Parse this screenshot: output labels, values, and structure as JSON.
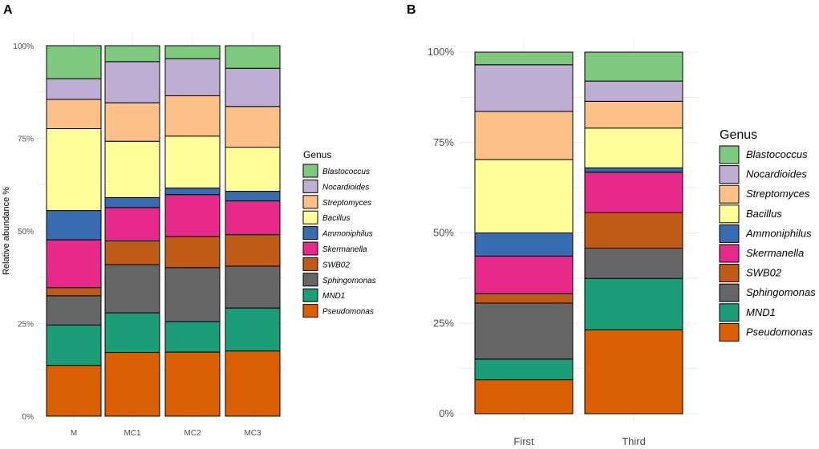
{
  "genera": [
    "Pseudomonas",
    "MND1",
    "Sphingomonas",
    "SWB02",
    "Skermanella",
    "Ammoniphilus",
    "Bacillus",
    "Streptomyces",
    "Nocardioides",
    "Blastococcus"
  ],
  "colors": {
    "Pseudomonas": "#d95f02",
    "MND1": "#1b9e77",
    "Sphingomonas": "#666666",
    "SWB02": "#bf5b17",
    "Skermanella": "#e7298a",
    "Ammoniphilus": "#386cb0",
    "Bacillus": "#ffff99",
    "Streptomyces": "#fdc086",
    "Nocardioides": "#beaed4",
    "Blastococcus": "#7fc97f"
  },
  "legend_order": [
    "Blastococcus",
    "Nocardioides",
    "Streptomyces",
    "Bacillus",
    "Ammoniphilus",
    "Skermanella",
    "SWB02",
    "Sphingomonas",
    "MND1",
    "Pseudomonas"
  ],
  "chart_data": [
    {
      "panel": "A",
      "type": "bar",
      "stacked": true,
      "title": "",
      "xlabel": "",
      "ylabel": "Relative abundance %",
      "ylim": [
        0,
        100
      ],
      "yticks": [
        "0%",
        "25%",
        "50%",
        "75%",
        "100%"
      ],
      "legend_title": "Genus",
      "legend_position": "right",
      "categories": [
        "M",
        "MC1",
        "MC2",
        "MC3"
      ],
      "series": [
        {
          "name": "Pseudomonas",
          "values": [
            13.7,
            17.2,
            17.3,
            17.6
          ]
        },
        {
          "name": "MND1",
          "values": [
            10.9,
            10.7,
            8.2,
            11.6
          ]
        },
        {
          "name": "Sphingomonas",
          "values": [
            7.9,
            13.0,
            14.6,
            11.3
          ]
        },
        {
          "name": "SWB02",
          "values": [
            2.2,
            6.4,
            8.4,
            8.5
          ]
        },
        {
          "name": "Skermanella",
          "values": [
            12.9,
            9.0,
            11.3,
            9.1
          ]
        },
        {
          "name": "Ammoniphilus",
          "values": [
            7.9,
            2.7,
            1.8,
            2.6
          ]
        },
        {
          "name": "Bacillus",
          "values": [
            22.1,
            15.2,
            14.0,
            11.9
          ]
        },
        {
          "name": "Streptomyces",
          "values": [
            7.9,
            10.4,
            10.9,
            11.0
          ]
        },
        {
          "name": "Nocardioides",
          "values": [
            5.6,
            11.1,
            10.0,
            10.3
          ]
        },
        {
          "name": "Blastococcus",
          "values": [
            8.9,
            4.3,
            3.5,
            6.1
          ]
        }
      ]
    },
    {
      "panel": "B",
      "type": "bar",
      "stacked": true,
      "title": "",
      "xlabel": "",
      "ylabel": "",
      "ylim": [
        0,
        100
      ],
      "yticks": [
        "0%",
        "25%",
        "50%",
        "75%",
        "100%"
      ],
      "legend_title": "Genus",
      "legend_position": "right",
      "categories": [
        "First",
        "Third"
      ],
      "series": [
        {
          "name": "Pseudomonas",
          "values": [
            9.4,
            23.2
          ]
        },
        {
          "name": "MND1",
          "values": [
            5.7,
            14.2
          ]
        },
        {
          "name": "Sphingomonas",
          "values": [
            15.5,
            8.4
          ]
        },
        {
          "name": "SWB02",
          "values": [
            2.6,
            9.8
          ]
        },
        {
          "name": "Skermanella",
          "values": [
            10.4,
            11.2
          ]
        },
        {
          "name": "Ammoniphilus",
          "values": [
            6.4,
            1.2
          ]
        },
        {
          "name": "Bacillus",
          "values": [
            20.3,
            11.0
          ]
        },
        {
          "name": "Streptomyces",
          "values": [
            13.3,
            7.4
          ]
        },
        {
          "name": "Nocardioides",
          "values": [
            12.9,
            5.6
          ]
        },
        {
          "name": "Blastococcus",
          "values": [
            3.5,
            8.0
          ]
        }
      ]
    }
  ]
}
